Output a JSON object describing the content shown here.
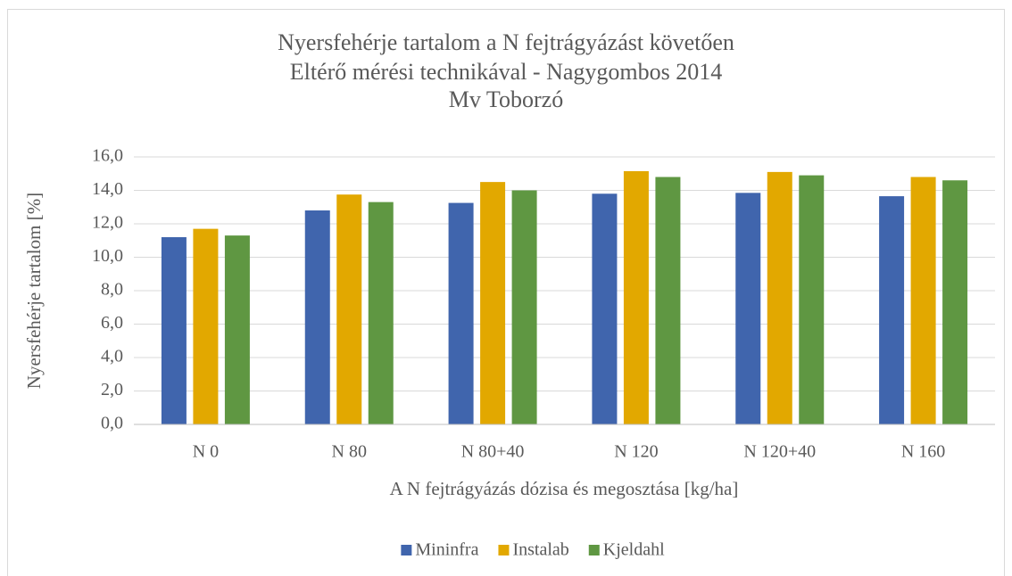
{
  "chart_data": {
    "type": "bar",
    "title": [
      "Nyersfehérje tartalom a N fejtrágyázást követően",
      "Eltérő mérési technikával - Nagygombos 2014",
      "Mv Toborzó"
    ],
    "x_label": "A N fejtrágyázás dózisa és megosztása [kg/ha]",
    "y_label": "Nyersfehérje tartalom [%]",
    "categories": [
      "N 0",
      "N 80",
      "N 80+40",
      "N 120",
      "N 120+40",
      "N 160"
    ],
    "series": [
      {
        "name": "Mininfra",
        "color": "#4065ad",
        "values": [
          11.2,
          12.8,
          13.25,
          13.8,
          13.85,
          13.65
        ]
      },
      {
        "name": "Instalab",
        "color": "#e2a800",
        "values": [
          11.7,
          13.75,
          14.5,
          15.15,
          15.1,
          14.8
        ]
      },
      {
        "name": "Kjeldahl",
        "color": "#5f9742",
        "values": [
          11.3,
          13.3,
          14.0,
          14.8,
          14.9,
          14.6
        ]
      }
    ],
    "ylim": [
      0,
      16
    ],
    "yticks": [
      {
        "value": 0,
        "label": "0,0"
      },
      {
        "value": 2,
        "label": "2,0"
      },
      {
        "value": 4,
        "label": "4,0"
      },
      {
        "value": 6,
        "label": "6,0"
      },
      {
        "value": 8,
        "label": "8,0"
      },
      {
        "value": 10,
        "label": "10,0"
      },
      {
        "value": 12,
        "label": "12,0"
      },
      {
        "value": 14,
        "label": "14,0"
      },
      {
        "value": 16,
        "label": "16,0"
      }
    ],
    "grid": true,
    "legend": "bottom"
  }
}
